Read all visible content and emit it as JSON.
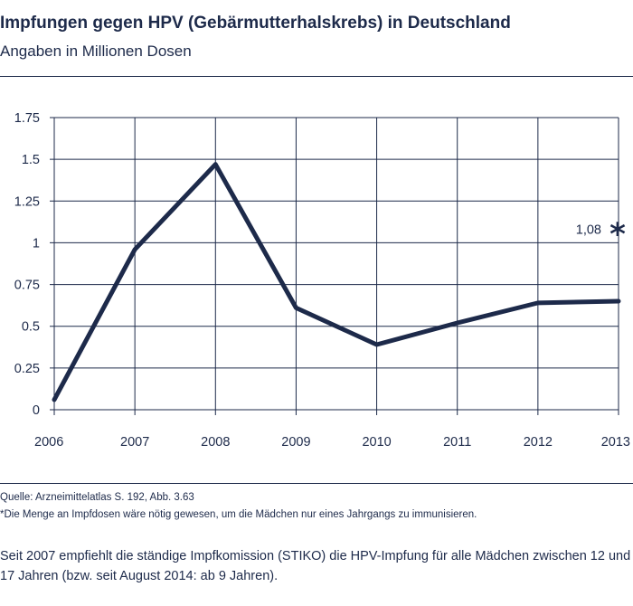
{
  "header": {
    "title": "Impfungen gegen HPV (Gebärmutterhalskrebs) in Deutschland",
    "subtitle": "Angaben in Millionen Dosen"
  },
  "footer": {
    "source": "Quelle: Arzneimittelatlas S. 192, Abb. 3.63",
    "note": "*Die Menge an Impfdosen wäre nötig gewesen, um die Mädchen nur eines Jahrgangs zu immunisieren.",
    "text": "Seit 2007 empfiehlt die ständige Impfkomission (STIKO) die HPV-Impfung für alle Mädchen zwischen 12 und 17 Jahren (bzw. seit August 2014: ab 9 Jahren)."
  },
  "chart_data": {
    "type": "line",
    "title": "Impfungen gegen HPV (Gebärmutterhalskrebs) in Deutschland",
    "subtitle": "Angaben in Millionen Dosen",
    "x": [
      "2006",
      "2007",
      "2008",
      "2009",
      "2010",
      "2011",
      "2012",
      "2013"
    ],
    "series": [
      {
        "values": [
          0.06,
          0.96,
          1.47,
          0.61,
          0.39,
          0.52,
          0.64,
          0.65
        ]
      }
    ],
    "ylim": [
      0,
      1.75
    ],
    "yticks": [
      "0",
      "0.25",
      "0.5",
      "0.75",
      "1",
      "1.25",
      "1.5",
      "1.75"
    ],
    "grid": true,
    "annotation": {
      "text": "1,08",
      "marker": "*",
      "value": 1.08
    },
    "colors": {
      "line": "#1d2a4a",
      "grid": "#1d2a4a",
      "text": "#1d2a4a"
    }
  }
}
